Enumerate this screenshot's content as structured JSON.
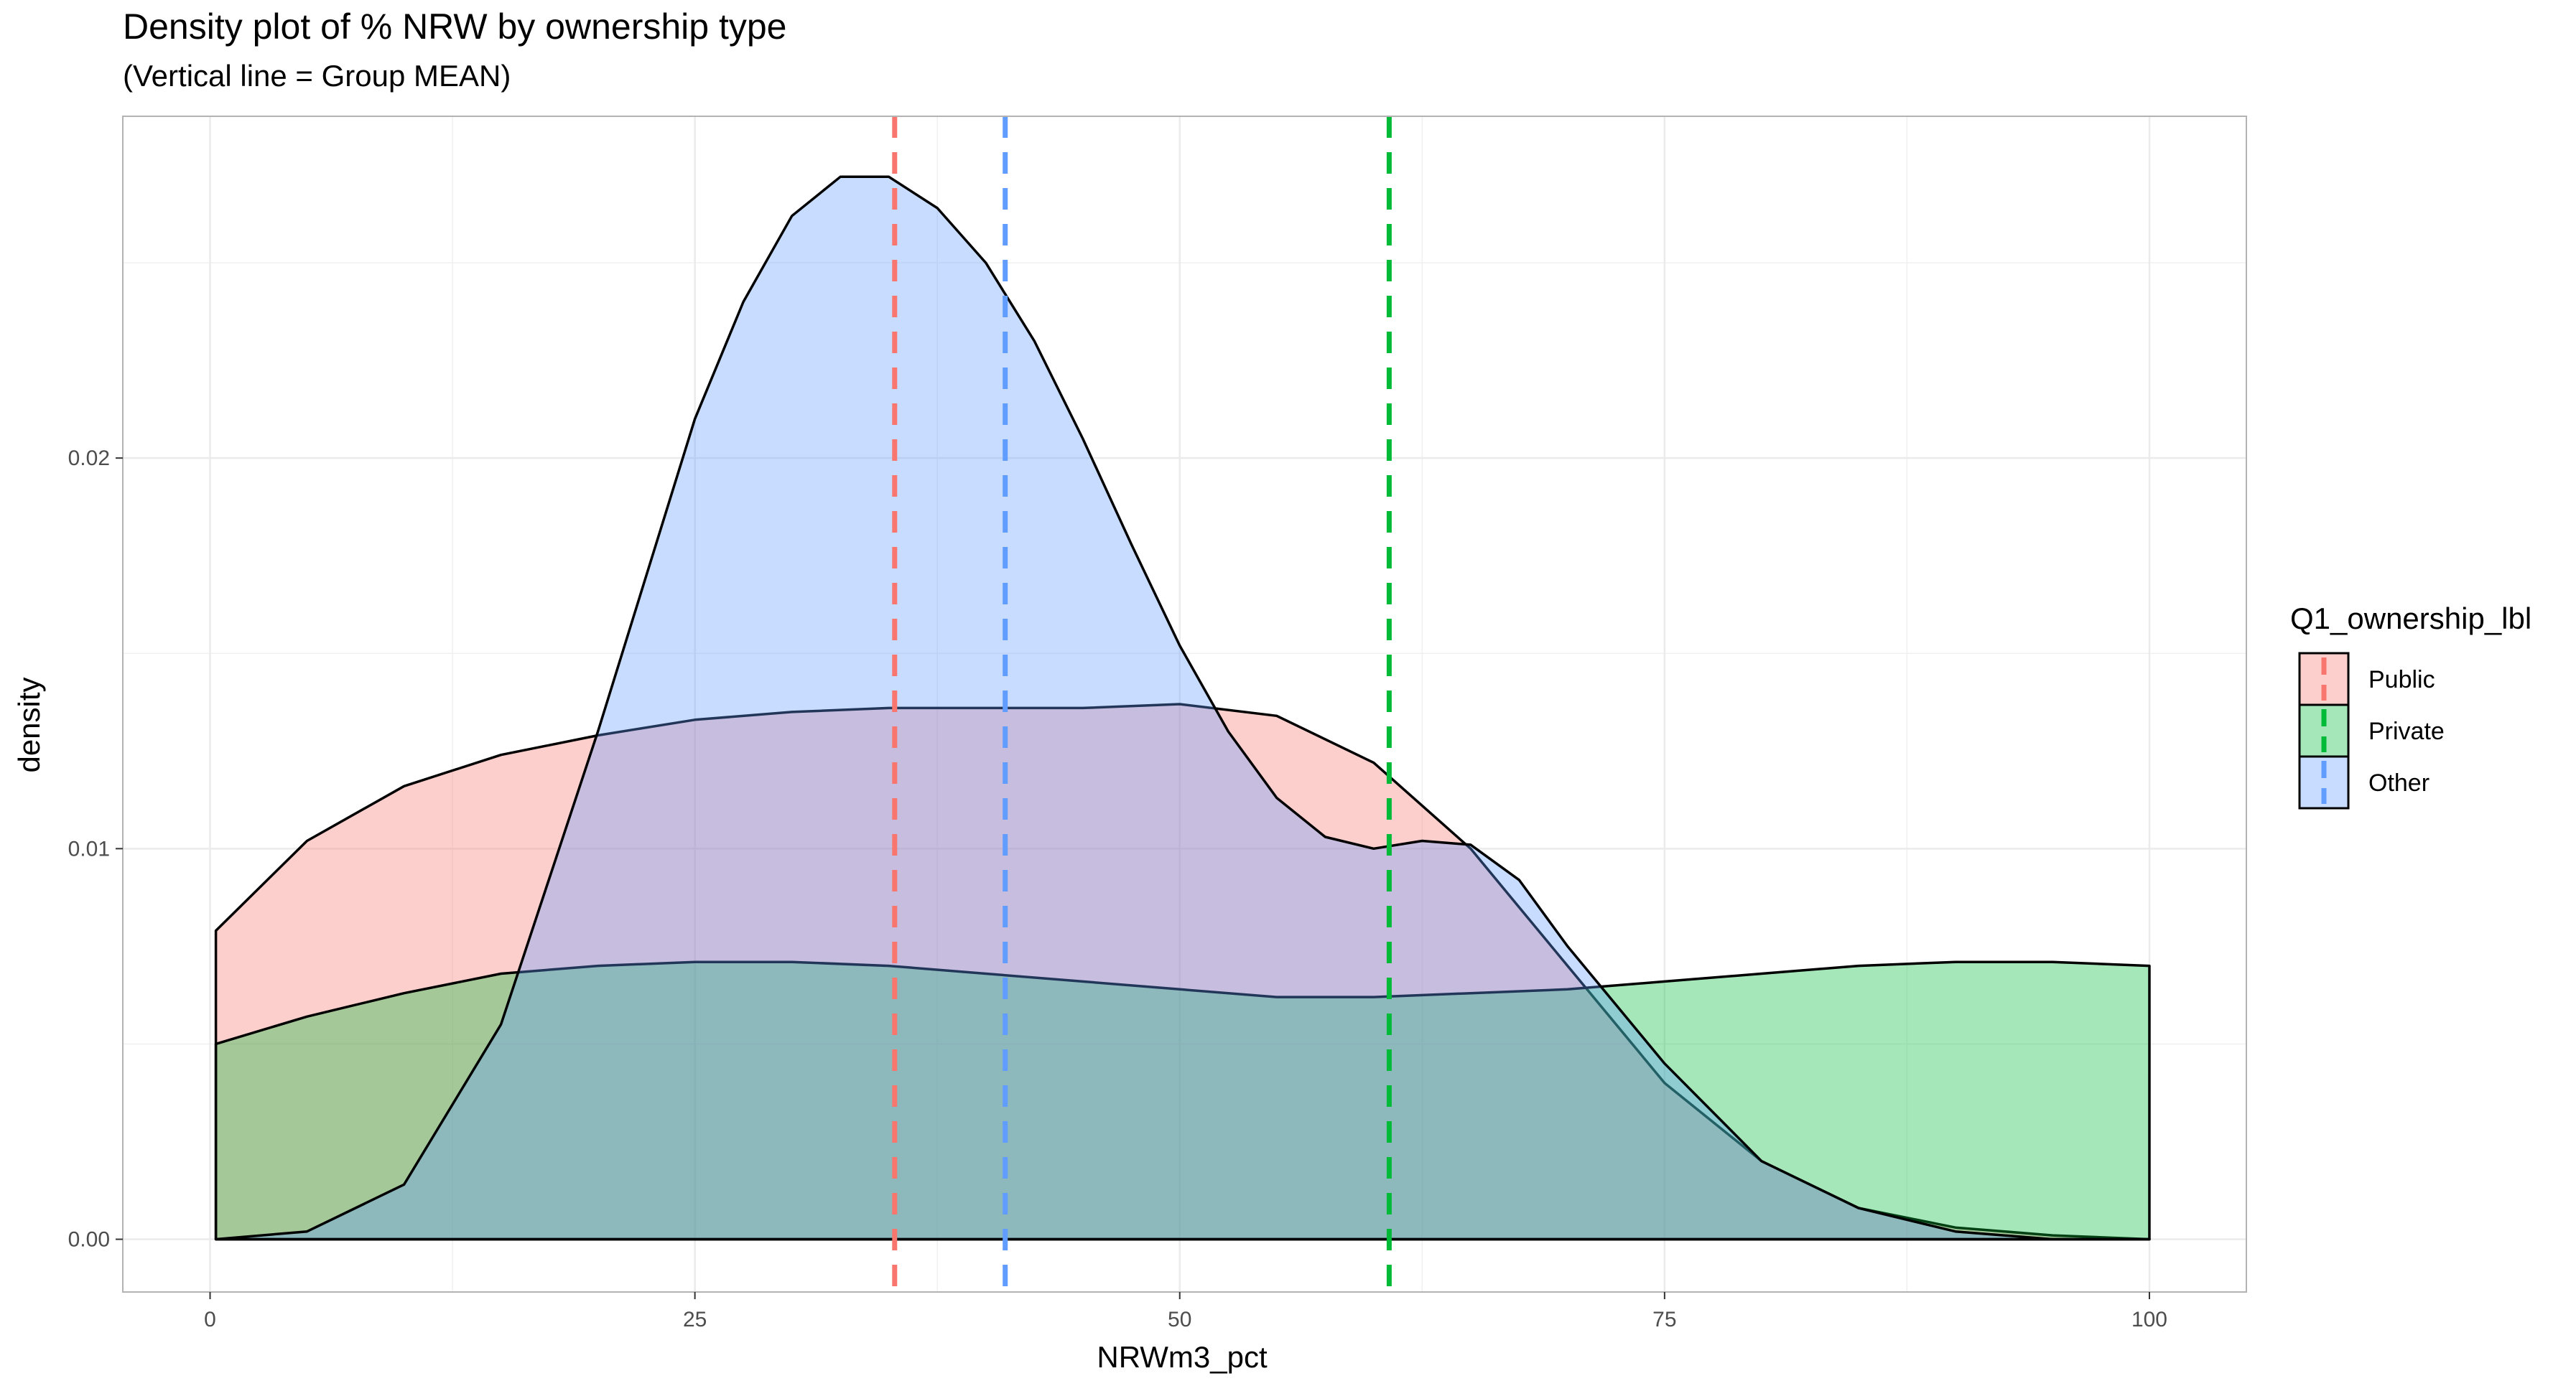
{
  "title": "Density plot of % NRW by ownership type",
  "subtitle": "(Vertical line = Group MEAN)",
  "chart_data": {
    "type": "area",
    "xlabel": "NRWm3_pct",
    "ylabel": "density",
    "xlim": [
      -4.5,
      105
    ],
    "ylim": [
      -0.00135,
      0.02875
    ],
    "x_ticks": [
      0,
      25,
      50,
      75,
      100
    ],
    "x_tick_labels": [
      "0",
      "25",
      "50",
      "75",
      "100"
    ],
    "y_ticks": [
      0.0,
      0.01,
      0.02
    ],
    "y_tick_labels": [
      "0.00",
      "0.01",
      "0.02"
    ],
    "grid": true,
    "legend": {
      "title": "Q1_ownership_lbl",
      "position": "right"
    },
    "series": [
      {
        "name": "Public",
        "color": "#f8766d",
        "mean": 35.3,
        "x": [
          0.3,
          5,
          10,
          15,
          20,
          25,
          30,
          35,
          40,
          45,
          50,
          55,
          60,
          65,
          70,
          75,
          80,
          85,
          90,
          95,
          100
        ],
        "y": [
          0.0079,
          0.0102,
          0.0116,
          0.0124,
          0.0129,
          0.0133,
          0.0135,
          0.0136,
          0.0136,
          0.0136,
          0.0137,
          0.0134,
          0.0122,
          0.01,
          0.007,
          0.004,
          0.002,
          0.0008,
          0.0003,
          0.0001,
          0.0
        ]
      },
      {
        "name": "Private",
        "color": "#00ba38",
        "mean": 60.8,
        "x": [
          0.3,
          5,
          10,
          15,
          20,
          25,
          30,
          35,
          40,
          45,
          50,
          55,
          60,
          65,
          70,
          75,
          80,
          85,
          90,
          95,
          100
        ],
        "y": [
          0.005,
          0.0057,
          0.0063,
          0.0068,
          0.007,
          0.0071,
          0.0071,
          0.007,
          0.0068,
          0.0066,
          0.0064,
          0.0062,
          0.0062,
          0.0063,
          0.0064,
          0.0066,
          0.0068,
          0.007,
          0.0071,
          0.0071,
          0.007
        ]
      },
      {
        "name": "Other",
        "color": "#619cff",
        "mean": 41.0,
        "x": [
          0.3,
          5,
          10,
          15,
          20,
          22.5,
          25,
          27.5,
          30,
          32.5,
          35,
          37.5,
          40,
          42.5,
          45,
          47.5,
          50,
          52.5,
          55,
          57.5,
          60,
          62.5,
          65,
          67.5,
          70,
          75,
          80,
          85,
          90,
          95,
          100
        ],
        "y": [
          0.0,
          0.0002,
          0.0014,
          0.0055,
          0.013,
          0.017,
          0.021,
          0.024,
          0.0262,
          0.0272,
          0.0272,
          0.0264,
          0.025,
          0.023,
          0.0205,
          0.0178,
          0.0152,
          0.013,
          0.0113,
          0.0103,
          0.01,
          0.0102,
          0.0101,
          0.0092,
          0.0075,
          0.0045,
          0.002,
          0.0008,
          0.0002,
          0.0,
          0.0
        ]
      }
    ]
  }
}
